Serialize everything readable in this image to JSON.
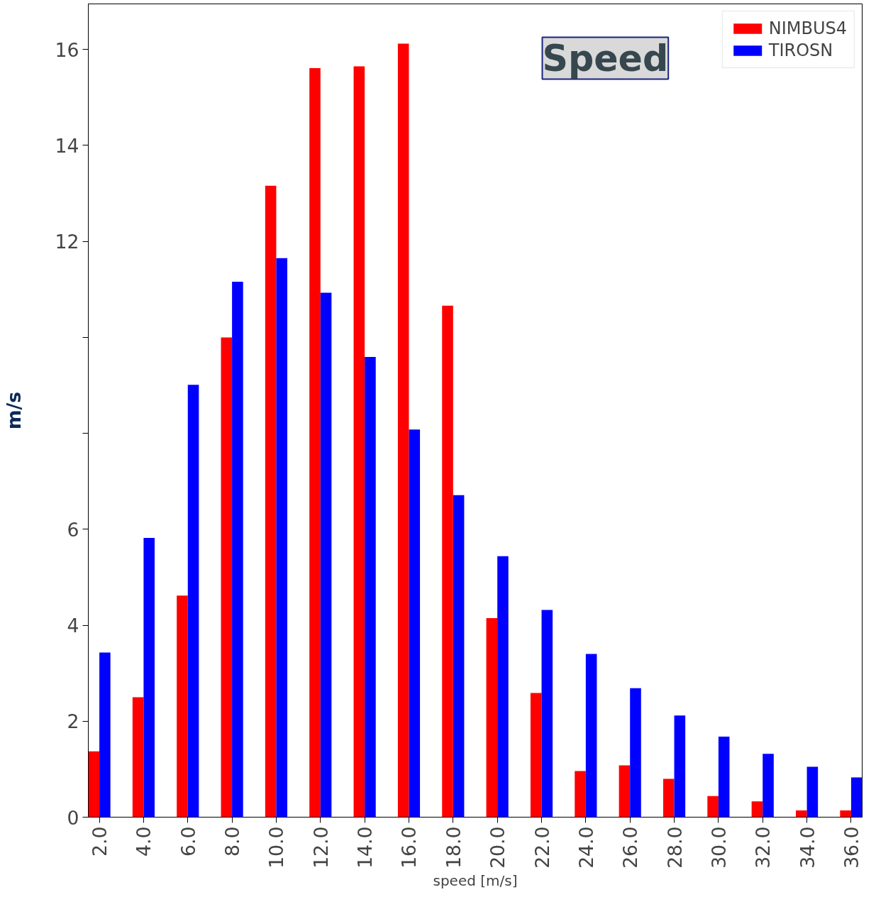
{
  "chart_data": {
    "type": "bar",
    "ylabel": "m/s",
    "xlabel": "speed [m/s]",
    "annotations": [
      "Speed"
    ],
    "categories": [
      "2.0",
      "4.0",
      "6.0",
      "8.0",
      "10.0",
      "12.0",
      "14.0",
      "16.0",
      "18.0",
      "20.0",
      "22.0",
      "24.0",
      "26.0",
      "28.0",
      "30.0",
      "32.0",
      "34.0",
      "36.0"
    ],
    "series": [
      {
        "name": "NIMBUS4",
        "color": "#ff0000",
        "values": [
          1.37,
          2.5,
          4.62,
          10.0,
          13.16,
          15.61,
          15.65,
          16.12,
          10.66,
          4.15,
          2.59,
          0.96,
          1.08,
          0.8,
          0.44,
          0.33,
          0.14,
          0.14
        ]
      },
      {
        "name": "TIROSN",
        "color": "#0000ff",
        "values": [
          3.43,
          5.82,
          9.01,
          11.16,
          11.65,
          10.93,
          9.59,
          8.08,
          6.71,
          5.44,
          4.32,
          3.4,
          2.69,
          2.12,
          1.68,
          1.32,
          1.05,
          0.83
        ]
      }
    ],
    "ylim": [
      0,
      16.95
    ],
    "yticks": [
      0,
      2,
      4,
      6,
      {
        "value": 8,
        "label": null
      },
      {
        "value": 10,
        "label": null
      },
      12,
      14,
      16
    ],
    "grid": false,
    "legend": "top right"
  }
}
